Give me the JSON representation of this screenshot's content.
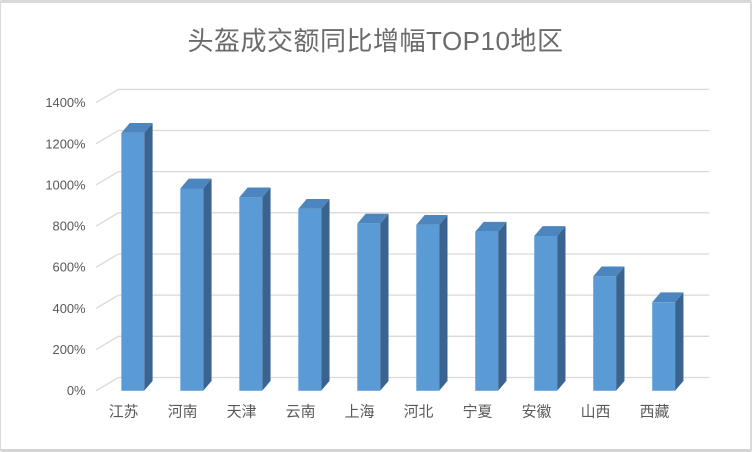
{
  "card": {
    "background": "#FFFFFF",
    "border_color": "#D9D9D9"
  },
  "chart_data": {
    "type": "bar",
    "variant": "3d-column",
    "title": "头盔成交额同比增幅TOP10地区",
    "xlabel": "",
    "ylabel": "",
    "categories": [
      "江苏",
      "河南",
      "天津",
      "云南",
      "上海",
      "河北",
      "宁夏",
      "安徽",
      "山西",
      "西藏"
    ],
    "values": [
      1253,
      983,
      940,
      884,
      812,
      806,
      773,
      752,
      556,
      430
    ],
    "value_unit": "%",
    "ylim": [
      0,
      1400
    ],
    "ytick_step": 200,
    "ytick_labels": [
      "0%",
      "200%",
      "400%",
      "600%",
      "800%",
      "1000%",
      "1200%",
      "1400%"
    ],
    "grid": true,
    "legend_position": "none",
    "colors": {
      "bar_front": "#5B9BD5",
      "bar_top": "#4D86BE",
      "bar_side": "#3A648F",
      "gridline": "#D9D9D9",
      "axis_label": "#595959",
      "title": "#6B6B6B"
    }
  }
}
